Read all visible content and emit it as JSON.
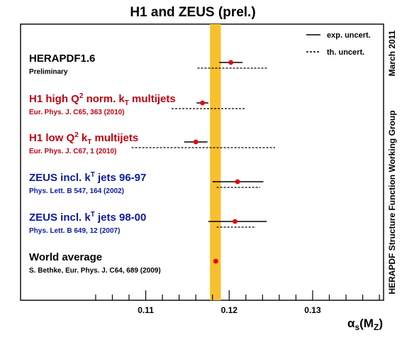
{
  "chart_data": {
    "type": "scatter",
    "title": "H1 and ZEUS (prel.)",
    "xlabel": {
      "main": "α",
      "sub1": "s",
      "open": "(M",
      "sub2": "Z",
      "close": ")"
    },
    "xlim": [
      0.095,
      0.1385
    ],
    "xticks": [
      0.11,
      0.12,
      0.13
    ],
    "xtick_labels": [
      "0.11",
      "0.12",
      "0.13"
    ],
    "world_average_band": [
      0.1177,
      0.119
    ],
    "legend": {
      "placement": "top-right",
      "items": [
        {
          "label": "exp. uncert.",
          "style": "solid"
        },
        {
          "label": "th. uncert.",
          "style": "dashed"
        }
      ]
    },
    "side_text": {
      "top": "March 2011",
      "bottom": "HERAPDF Structure Function Working Group"
    },
    "colors": {
      "band": "#f9c02c",
      "marker": "#e8000b",
      "h1": "#c0000f",
      "zeus": "#0a1aa3",
      "black": "#000000"
    },
    "measurements": [
      {
        "line1": "HERAPDF1.6",
        "line2": "Preliminary",
        "color": "black",
        "value": 0.1202,
        "exp": [
          0.1188,
          0.1216
        ],
        "th": [
          0.1162,
          0.1247
        ]
      },
      {
        "line1": "H1 high Q² norm. kT multijets",
        "parts": [
          "H1 high Q",
          "2",
          " norm. k",
          "T",
          " multijets"
        ],
        "line2": "Eur. Phys. J. C65, 363 (2010)",
        "color": "h1",
        "value": 0.1168,
        "exp": [
          0.1161,
          0.1175
        ],
        "th": [
          0.1131,
          0.1219
        ]
      },
      {
        "line1": "H1 low Q² kT multijets",
        "parts": [
          "H1 low Q",
          "2",
          " k",
          "T",
          " multijets"
        ],
        "line2": "Eur. Phys. J. C67, 1 (2010)",
        "color": "h1",
        "value": 0.116,
        "exp": [
          0.1146,
          0.1174
        ],
        "th": [
          0.1083,
          0.1255
        ]
      },
      {
        "line1": "ZEUS incl. kT jets 96-97",
        "parts": [
          "ZEUS incl. k",
          "T",
          " jets 96-97"
        ],
        "line2": "Phys. Lett. B 547, 164 (2002)",
        "color": "zeus",
        "value": 0.121,
        "exp": [
          0.118,
          0.1241
        ],
        "th": [
          0.1185,
          0.1237
        ]
      },
      {
        "line1": "ZEUS incl. kT jets 98-00",
        "parts": [
          "ZEUS incl. k",
          "T",
          " jets 98-00"
        ],
        "line2": "Phys. Lett. B 649, 12 (2007)",
        "color": "zeus",
        "value": 0.1207,
        "exp": [
          0.1175,
          0.1245
        ],
        "th": [
          0.1185,
          0.1232
        ]
      },
      {
        "line1": "World average",
        "line2": "S. Bethke, Eur. Phys. J. C64, 689 (2009)",
        "color": "black",
        "value": 0.1184,
        "exp": null,
        "th": null
      }
    ]
  }
}
